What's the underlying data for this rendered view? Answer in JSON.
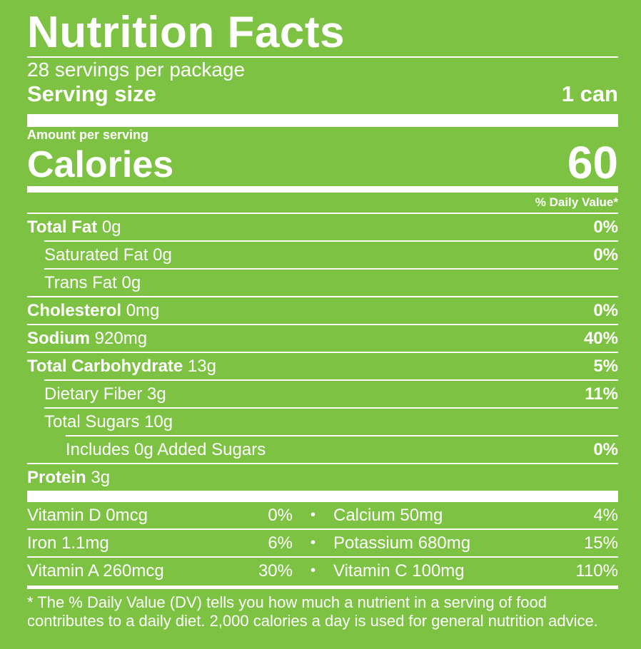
{
  "title": "Nutrition Facts",
  "servings_per_package": "28 servings per package",
  "serving_size": {
    "label": "Serving size",
    "value": "1 can"
  },
  "amount_per_serving": "Amount per serving",
  "calories": {
    "label": "Calories",
    "value": "60"
  },
  "daily_value_header": "% Daily Value*",
  "nutrients": [
    {
      "name": "Total Fat",
      "amount": "0g",
      "dv": "0%"
    },
    {
      "name": "Saturated Fat",
      "amount": "0g",
      "dv": "0%"
    },
    {
      "name": "Trans Fat",
      "amount": "0g",
      "dv": ""
    },
    {
      "name": "Cholesterol",
      "amount": "0mg",
      "dv": "0%"
    },
    {
      "name": "Sodium",
      "amount": "920mg",
      "dv": "40%"
    },
    {
      "name": "Total Carbohydrate",
      "amount": "13g",
      "dv": "5%"
    },
    {
      "name": "Dietary Fiber",
      "amount": "3g",
      "dv": "11%"
    },
    {
      "name": "Total Sugars",
      "amount": "10g",
      "dv": ""
    },
    {
      "name": "Includes 0g Added Sugars",
      "amount": "",
      "dv": "0%"
    },
    {
      "name": "Protein",
      "amount": "3g",
      "dv": ""
    }
  ],
  "vitamins": [
    {
      "left": {
        "label": "Vitamin D 0mcg",
        "dv": "0%"
      },
      "right": {
        "label": "Calcium 50mg",
        "dv": "4%"
      }
    },
    {
      "left": {
        "label": "Iron 1.1mg",
        "dv": "6%"
      },
      "right": {
        "label": "Potassium 680mg",
        "dv": "15%"
      }
    },
    {
      "left": {
        "label": "Vitamin A 260mcg",
        "dv": "30%"
      },
      "right": {
        "label": "Vitamin C 100mg",
        "dv": "110%"
      }
    }
  ],
  "bullet": "•",
  "footnote": "* The % Daily Value (DV) tells you how much a nutrient in a serving of food contributes to a daily diet. 2,000 calories a day is used for general nutrition advice.",
  "colors": {
    "background": "#7dc242",
    "text": "#ffffff"
  }
}
